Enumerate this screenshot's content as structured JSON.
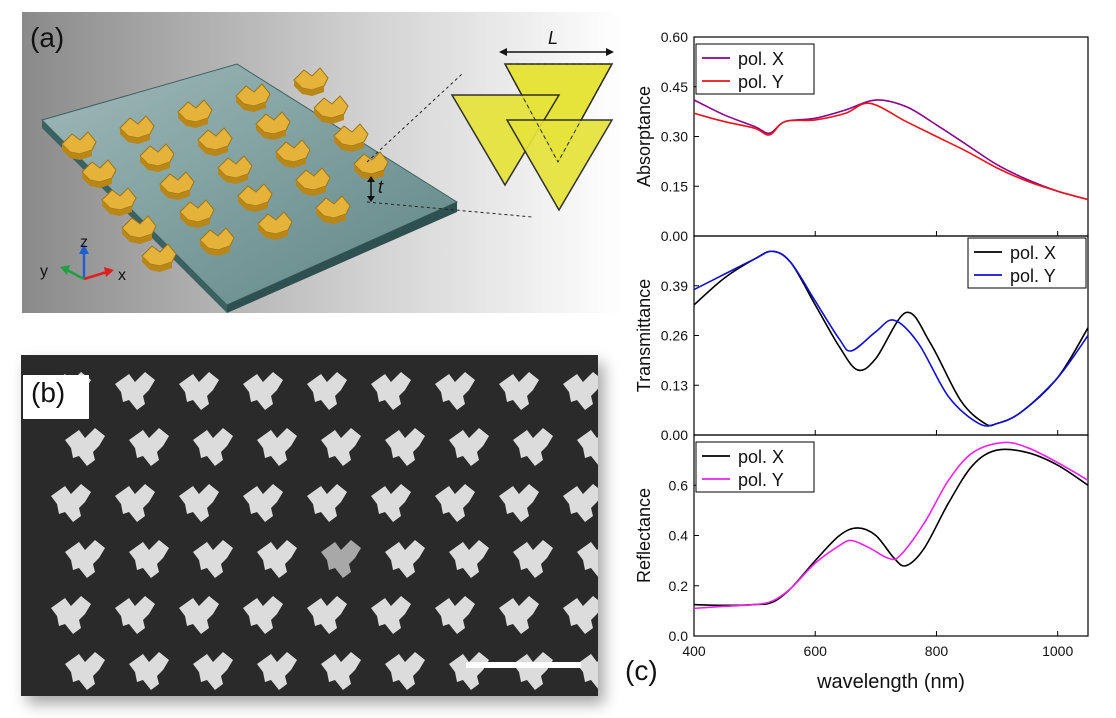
{
  "panel_a": {
    "label": "(a)",
    "dimension_L": "L",
    "dimension_t": "t",
    "axes": {
      "x": "x",
      "y": "y",
      "z": "z"
    }
  },
  "panel_b": {
    "label": "(b)"
  },
  "panel_c": {
    "label": "(c)"
  },
  "chart_data": [
    {
      "type": "line",
      "xlabel": "wavelength (nm)",
      "ylabel": "Absorptance",
      "xlim": [
        400,
        1050
      ],
      "ylim": [
        0,
        0.6
      ],
      "yticks": [
        "0.00",
        "0.15",
        "0.30",
        "0.45",
        "0.60"
      ],
      "xticks": [
        "400",
        "600",
        "800",
        "1000"
      ],
      "legend_position": "top-left",
      "series": [
        {
          "name": "pol. X",
          "color": "#8b008b",
          "x": [
            400,
            450,
            500,
            525,
            550,
            600,
            650,
            700,
            750,
            800,
            850,
            900,
            950,
            1000,
            1050
          ],
          "values": [
            0.41,
            0.365,
            0.33,
            0.31,
            0.345,
            0.355,
            0.38,
            0.41,
            0.39,
            0.335,
            0.275,
            0.215,
            0.17,
            0.135,
            0.11
          ]
        },
        {
          "name": "pol. Y",
          "color": "#e8141a",
          "x": [
            400,
            450,
            500,
            525,
            550,
            600,
            650,
            690,
            750,
            800,
            850,
            900,
            950,
            1000,
            1050
          ],
          "values": [
            0.37,
            0.345,
            0.325,
            0.305,
            0.345,
            0.35,
            0.37,
            0.4,
            0.345,
            0.3,
            0.255,
            0.205,
            0.165,
            0.135,
            0.11
          ]
        }
      ]
    },
    {
      "type": "line",
      "xlabel": "wavelength (nm)",
      "ylabel": "Transmittance",
      "xlim": [
        400,
        1050
      ],
      "ylim": [
        0,
        0.52
      ],
      "yticks": [
        "0.00",
        "0.13",
        "0.26",
        "0.39"
      ],
      "xticks": [
        "400",
        "600",
        "800",
        "1000"
      ],
      "legend_position": "top-right",
      "series": [
        {
          "name": "pol. X",
          "color": "#000000",
          "x": [
            400,
            450,
            500,
            530,
            560,
            600,
            640,
            670,
            700,
            750,
            790,
            840,
            880,
            900,
            940,
            1000,
            1050
          ],
          "values": [
            0.34,
            0.41,
            0.46,
            0.48,
            0.45,
            0.34,
            0.23,
            0.17,
            0.2,
            0.32,
            0.24,
            0.09,
            0.03,
            0.03,
            0.06,
            0.15,
            0.28
          ]
        },
        {
          "name": "pol. Y",
          "color": "#1010d0",
          "x": [
            400,
            450,
            500,
            530,
            560,
            600,
            640,
            660,
            700,
            730,
            770,
            820,
            870,
            900,
            940,
            1000,
            1050
          ],
          "values": [
            0.38,
            0.42,
            0.46,
            0.48,
            0.45,
            0.35,
            0.25,
            0.22,
            0.27,
            0.3,
            0.24,
            0.1,
            0.03,
            0.03,
            0.06,
            0.15,
            0.26
          ]
        }
      ]
    },
    {
      "type": "line",
      "xlabel": "wavelength (nm)",
      "ylabel": "Reflectance",
      "xlim": [
        400,
        1050
      ],
      "ylim": [
        0,
        0.8
      ],
      "yticks": [
        "0.0",
        "0.2",
        "0.4",
        "0.6"
      ],
      "xticks": [
        "400",
        "600",
        "800",
        "1000"
      ],
      "legend_position": "top-left",
      "series": [
        {
          "name": "pol. X",
          "color": "#000000",
          "x": [
            400,
            450,
            500,
            530,
            560,
            600,
            640,
            670,
            700,
            730,
            750,
            780,
            820,
            860,
            900,
            950,
            1000,
            1050
          ],
          "values": [
            0.125,
            0.122,
            0.125,
            0.135,
            0.19,
            0.3,
            0.4,
            0.43,
            0.4,
            0.31,
            0.28,
            0.35,
            0.53,
            0.68,
            0.74,
            0.73,
            0.68,
            0.6
          ]
        },
        {
          "name": "pol. Y",
          "color": "#ee22ee",
          "x": [
            400,
            450,
            500,
            530,
            560,
            600,
            640,
            660,
            690,
            720,
            740,
            780,
            820,
            860,
            910,
            950,
            1000,
            1050
          ],
          "values": [
            0.11,
            0.118,
            0.125,
            0.14,
            0.19,
            0.29,
            0.36,
            0.38,
            0.35,
            0.31,
            0.32,
            0.45,
            0.62,
            0.73,
            0.77,
            0.75,
            0.69,
            0.62
          ]
        }
      ]
    }
  ]
}
